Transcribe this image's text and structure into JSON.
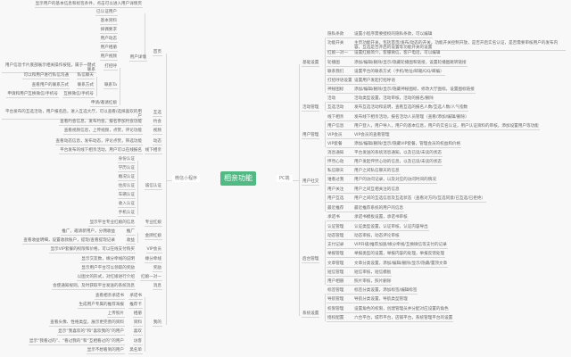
{
  "center": "相亲功能",
  "accent_color": "#4fba82",
  "left": {
    "root": "微信小程序",
    "items": [
      "显示用户的基本信息和标签条件，点击可以进入用户详情页",
      "已认证用户",
      "基本资料",
      "择偶要求",
      "用户动态",
      "用户相册",
      "用户视频",
      "用户详情",
      "首页",
      "用户信息卡片底部展示相关操作按钮，属于一键式联系",
      "打招呼",
      "可以和用户进行私信沟通",
      "私信聊天",
      "查看用户的联系方式",
      "联系方式",
      "联系Ta",
      "申请和用户互换微信/手机号",
      "互换微信/手机号",
      "申请/邀请红娘",
      "平台发布的互选活动，用户报名后，进入互选大厅，可以查看/选择喜欢的用户",
      "互选",
      "查看约会信息，发布约会，报名参加约会功能",
      "约会",
      "查看视频信息，上传视频，点赞，评论功能",
      "视频",
      "查看动态信息，发布动态，评论点赞，筛选功能",
      "动态",
      "平台发布的线下相亲活动，用户可以在线报名",
      "线下相亲",
      "身份认证",
      "学历认证",
      "婚况认证",
      "住房认证",
      "诚信认证",
      "车辆认证",
      "收入认证",
      "手机认证",
      "显示平台专业红娘的信息",
      "专业红娘",
      "推广，邀请新用户，分佣收益",
      "推广",
      "金牌红娘",
      "查看收益明细，设置收款账户，提现/查看提现记录",
      "收益",
      "显示VIP套餐的权限和价格，可以在线支付购买",
      "VIP会员",
      "显示交友数，缘分牵线的说明",
      "缘分牵线",
      "显示用户平台可以领取的奖励",
      "奖励",
      "以图文的形式，对红娘进行介绍",
      "红娘一对一",
      "会使通知规则，及时获取平台发送的系统消息",
      "消息",
      "查看相亲承诺书",
      "承诺书",
      "生成用户专属的推荐海报",
      "推荐卡",
      "上传照片",
      "相册",
      "查看头像、性格类型，展示更完善的资料",
      "资料",
      "我的",
      "显示“我喜欢的”和“喜欢我的”的用户",
      "喜欢",
      "显示“我看过的”、“看过我的”和“互相看过的”的用户",
      "访客",
      "显示不想看到的用户",
      "黑名单"
    ]
  },
  "right": {
    "root": "PC端",
    "groups": [
      {
        "label": "基础设置",
        "children": [
          {
            "label": "隐私条款",
            "desc": "设置小程序需要授权的隐私条款，可以编辑"
          },
          {
            "label": "功能开关",
            "desc": "主页功能开关，包括首页/发布/动态的开关，功能开关控制开放，是否开启实名认证，是否需要审核用户的发布内容，互选是否开启的设置等功能开关的设置"
          },
          {
            "label": "红娘一对一",
            "desc": "设置红娘简介，客服微信，客户电话，可以编辑"
          },
          {
            "label": "轮播图",
            "desc": "添加/编辑/删除/显示/隐藏轮播图和链接，设置轮播图跳转链接"
          },
          {
            "label": "联系我们",
            "desc": "设置平台的联系方式（手机/地址/邮箱/QQ/邮编）"
          },
          {
            "label": "打招呼语设置",
            "desc": "设置用户发起打招呼语"
          },
          {
            "label": "神秘图标",
            "desc": "添加/编辑/删除/显示/隐藏神秘图标，修改大厅图标，设置图标链接"
          }
        ]
      },
      {
        "label": "活动管理",
        "children": [
          {
            "label": "活动",
            "desc": "活动类型设置，活动审核，活动的报名/删除"
          },
          {
            "label": "互选活动",
            "desc": "发布互选活动和说明，查看互选的报名人数/互选人数/人气指数"
          }
        ]
      },
      {
        "label": "用户管理",
        "children": [
          {
            "label": "线下相亲",
            "desc": "发布线下相亲活动，报名活动人员管理（查看/添加/编辑/删除）"
          },
          {
            "label": "用户信息",
            "desc": "用户登入，用户导入，用户的基本信息，用户的实名认证，用户认证资料的审核，添加设置用户等功能"
          },
          {
            "label": "VIP会员",
            "desc": "VIP会员的查看管理"
          },
          {
            "label": "VIP套餐",
            "desc": "添加/编辑/删除/显示/隐藏VIP套餐，管理会员的权益和价格"
          }
        ]
      },
      {
        "label": "用户社交",
        "children": [
          {
            "label": "消息通知",
            "desc": "平台发送的系统消息通知，以及已读/未读的状态"
          },
          {
            "label": "怦然心动",
            "desc": "用户发起怦然心动的信息，以及已读/未读的状态"
          },
          {
            "label": "私信聊天",
            "desc": "用户之间私信聊天的信息"
          },
          {
            "label": "谁看过我",
            "desc": "用户的访问记录，以及对应的访问时间的情况"
          },
          {
            "label": "用户关注",
            "desc": "用户之间互相关注的信息"
          },
          {
            "label": "用户互选",
            "desc": "用户之间的互选信息及互选状态（查看对方的/互选同意/已互选/已拒绝）"
          },
          {
            "label": "最近推荐",
            "desc": "最近推荐系统的用户的信息"
          }
        ]
      },
      {
        "label": "后台管理",
        "children": [
          {
            "label": "承诺书",
            "desc": "承诺书模板设置，承诺书审核"
          },
          {
            "label": "认证管理",
            "desc": "认证类型设置，认证审核，认证内容导出"
          },
          {
            "label": "动态管理",
            "desc": "动态审核，动态评论审核"
          },
          {
            "label": "支付记录",
            "desc": "VIP升级/推荐加速/缘分牵线/互换微信等支付的记录"
          },
          {
            "label": "举报管理",
            "desc": "举报类型的设置，举报内容的处理，举报反馈处理"
          },
          {
            "label": "文章管理",
            "desc": "文章分类设置，添加/编辑/删除/显示/隐藏/置顶文章"
          },
          {
            "label": "短信管理",
            "desc": "短信审核，短信模板"
          },
          {
            "label": "用户相册",
            "desc": "照片审核，照片删除"
          }
        ]
      },
      {
        "label": "系统设置",
        "children": [
          {
            "label": "标签管理",
            "desc": "标签分类设置，添加标签/编辑标签"
          },
          {
            "label": "导航管理",
            "desc": "导航分类设置，导航类型管理"
          },
          {
            "label": "权限管理",
            "desc": "设置角色的权限，创建管理员并分配对应设置的角色"
          },
          {
            "label": "授权配置",
            "desc": "六合平台，城市平台，店铺平台，系统管理平台的设置"
          }
        ]
      }
    ]
  }
}
